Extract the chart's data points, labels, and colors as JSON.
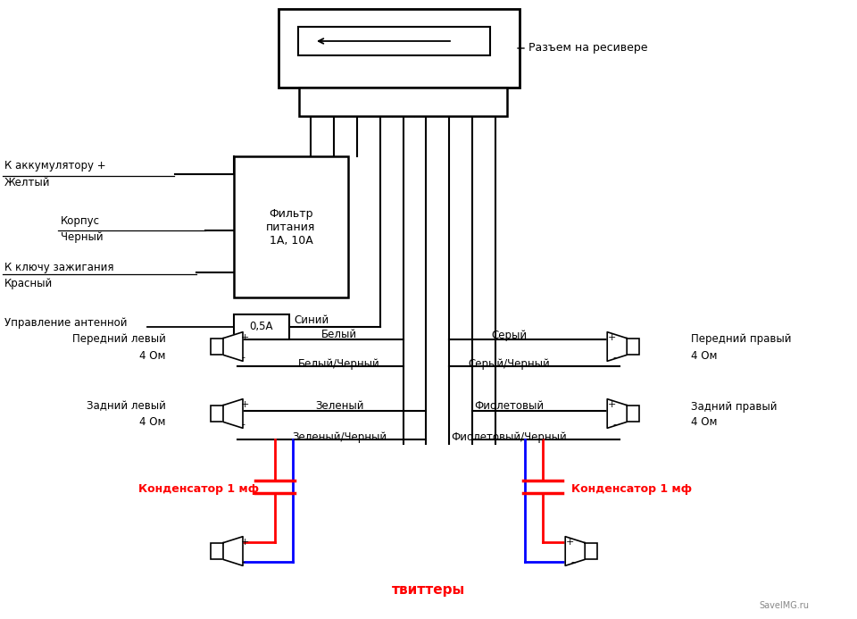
{
  "bg_color": "#ffffff",
  "watermark": "SaveIMG.ru",
  "label_receiver": "Разъем на ресивере",
  "label_filter": "Фильтр\nпитания\n1А, 10А",
  "label_fuse": "0,5А",
  "label_battery1": "К аккумулятору +",
  "label_battery2": "Желтый",
  "label_body1": "Корпус",
  "label_body2": "Черный",
  "label_ignition1": "К ключу зажигания",
  "label_ignition2": "Красный",
  "label_antenna": "Управление антенной",
  "label_blue": "Синий",
  "label_white": "Белый",
  "label_white_black": "Белый/Черный",
  "label_gray": "Серый",
  "label_gray_black": "Серый/Черный",
  "label_green": "Зеленый",
  "label_green_black": "Зеленый/Черный",
  "label_violet": "Фиолетовый",
  "label_violet_black": "Фиолетовый/Черный",
  "label_front_left1": "Передний левый",
  "label_front_left2": "4 Ом",
  "label_front_right1": "Передний правый",
  "label_front_right2": "4 Ом",
  "label_rear_left1": "Задний левый",
  "label_rear_left2": "4 Ом",
  "label_rear_right1": "Задний правый",
  "label_rear_right2": "4 Ом",
  "label_cap_left": "Конденсатор 1 мф",
  "label_cap_right": "Конденсатор 1 мф",
  "label_tweeters": "твиттеры"
}
